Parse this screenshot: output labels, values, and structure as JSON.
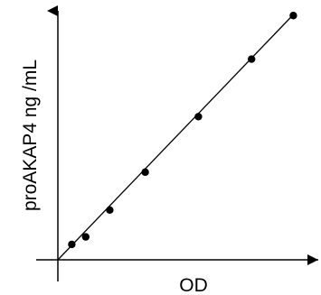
{
  "chart_data": {
    "type": "scatter",
    "title": "",
    "xlabel": "OD",
    "ylabel": "proAKAP4 ng /mL",
    "grid": false,
    "legend": "none",
    "tick_labels": false,
    "xlim": [
      0,
      1
    ],
    "ylim": [
      0,
      1
    ],
    "series": [
      {
        "points": [
          {
            "x": 0.055,
            "y": 0.062
          },
          {
            "x": 0.11,
            "y": 0.092
          },
          {
            "x": 0.205,
            "y": 0.2
          },
          {
            "x": 0.345,
            "y": 0.352
          },
          {
            "x": 0.555,
            "y": 0.575
          },
          {
            "x": 0.765,
            "y": 0.806
          },
          {
            "x": 0.93,
            "y": 0.981
          }
        ],
        "color": "#000000"
      }
    ],
    "fit_line": {
      "x": [
        0.0,
        0.935
      ],
      "y": [
        0.0,
        0.99
      ],
      "color": "#000000"
    }
  }
}
